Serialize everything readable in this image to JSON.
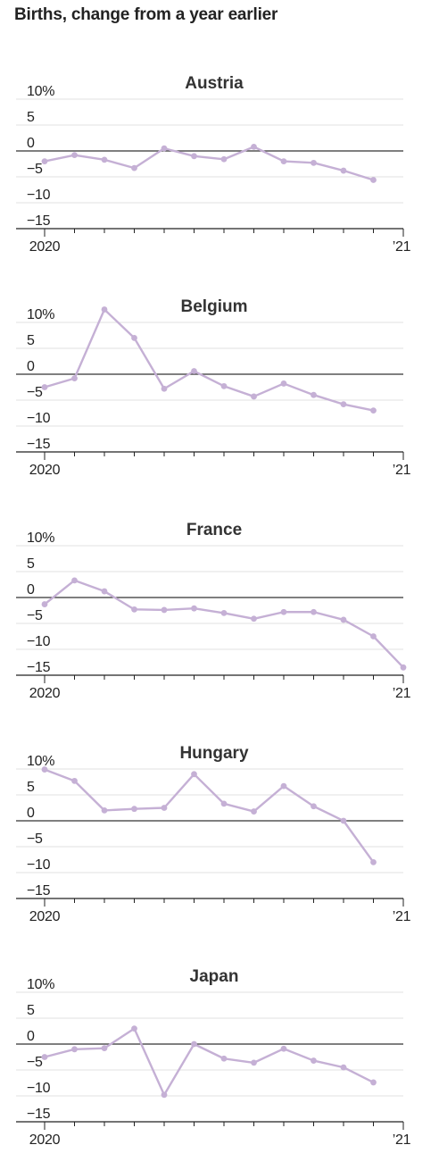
{
  "title": "Births, change from a year earlier",
  "colors": {
    "series": "#c5b0d5",
    "zero_line": "#333333",
    "grid": "#e2e2e2",
    "text": "#222222"
  },
  "chart_data": [
    {
      "type": "line",
      "title": "Austria",
      "x": [
        1,
        2,
        3,
        4,
        5,
        6,
        7,
        8,
        9,
        10,
        11,
        12
      ],
      "x_tick_labels": [
        "2020",
        "",
        "",
        "",
        "",
        "",
        "",
        "",
        "",
        "",
        "",
        "",
        "’21"
      ],
      "y_tick_labels": [
        "10%",
        "5",
        "0",
        "−5",
        "−10",
        "−15"
      ],
      "y_ticks": [
        10,
        5,
        0,
        -5,
        -10,
        -15
      ],
      "ylim": [
        -15,
        10
      ],
      "series": [
        {
          "values": [
            -2.0,
            -0.8,
            -1.7,
            -3.3,
            0.5,
            -1.0,
            -1.6,
            0.8,
            -2.0,
            -2.3,
            -3.8,
            -5.6
          ]
        }
      ],
      "grid": true
    },
    {
      "type": "line",
      "title": "Belgium",
      "x": [
        1,
        2,
        3,
        4,
        5,
        6,
        7,
        8,
        9,
        10,
        11,
        12
      ],
      "x_tick_labels": [
        "2020",
        "",
        "",
        "",
        "",
        "",
        "",
        "",
        "",
        "",
        "",
        "",
        "’21"
      ],
      "y_tick_labels": [
        "10%",
        "5",
        "0",
        "−5",
        "−10",
        "−15"
      ],
      "y_ticks": [
        10,
        5,
        0,
        -5,
        -10,
        -15
      ],
      "ylim": [
        -15,
        10
      ],
      "series": [
        {
          "values": [
            -2.5,
            -0.8,
            12.5,
            7.0,
            -2.8,
            0.6,
            -2.3,
            -4.3,
            -1.8,
            -4.0,
            -5.8,
            -7.0
          ]
        }
      ],
      "grid": true
    },
    {
      "type": "line",
      "title": "France",
      "x": [
        1,
        2,
        3,
        4,
        5,
        6,
        7,
        8,
        9,
        10,
        11,
        12,
        13
      ],
      "x_tick_labels": [
        "2020",
        "",
        "",
        "",
        "",
        "",
        "",
        "",
        "",
        "",
        "",
        "",
        "’21"
      ],
      "y_tick_labels": [
        "10%",
        "5",
        "0",
        "−5",
        "−10",
        "−15"
      ],
      "y_ticks": [
        10,
        5,
        0,
        -5,
        -10,
        -15
      ],
      "ylim": [
        -15,
        10
      ],
      "series": [
        {
          "values": [
            -1.3,
            3.3,
            1.2,
            -2.3,
            -2.4,
            -2.1,
            -3.0,
            -4.1,
            -2.8,
            -2.8,
            -4.3,
            -7.5,
            -13.5
          ]
        }
      ],
      "grid": true
    },
    {
      "type": "line",
      "title": "Hungary",
      "x": [
        1,
        2,
        3,
        4,
        5,
        6,
        7,
        8,
        9,
        10,
        11,
        12
      ],
      "x_tick_labels": [
        "2020",
        "",
        "",
        "",
        "",
        "",
        "",
        "",
        "",
        "",
        "",
        "",
        "’21"
      ],
      "y_tick_labels": [
        "10%",
        "5",
        "0",
        "−5",
        "−10",
        "−15"
      ],
      "y_ticks": [
        10,
        5,
        0,
        -5,
        -10,
        -15
      ],
      "ylim": [
        -15,
        10
      ],
      "series": [
        {
          "values": [
            9.9,
            7.7,
            2.0,
            2.3,
            2.5,
            9.0,
            3.3,
            1.8,
            6.7,
            2.8,
            0.0,
            -8.0
          ]
        }
      ],
      "grid": true
    },
    {
      "type": "line",
      "title": "Japan",
      "x": [
        1,
        2,
        3,
        4,
        5,
        6,
        7,
        8,
        9,
        10,
        11,
        12
      ],
      "x_tick_labels": [
        "2020",
        "",
        "",
        "",
        "",
        "",
        "",
        "",
        "",
        "",
        "",
        "",
        "’21"
      ],
      "y_tick_labels": [
        "10%",
        "5",
        "0",
        "−5",
        "−10",
        "−15"
      ],
      "y_ticks": [
        10,
        5,
        0,
        -5,
        -10,
        -15
      ],
      "ylim": [
        -15,
        10
      ],
      "series": [
        {
          "values": [
            -2.5,
            -1.0,
            -0.8,
            3.0,
            -9.8,
            0.0,
            -2.8,
            -3.6,
            -0.9,
            -3.2,
            -4.5,
            -7.4
          ]
        }
      ],
      "grid": true
    }
  ]
}
